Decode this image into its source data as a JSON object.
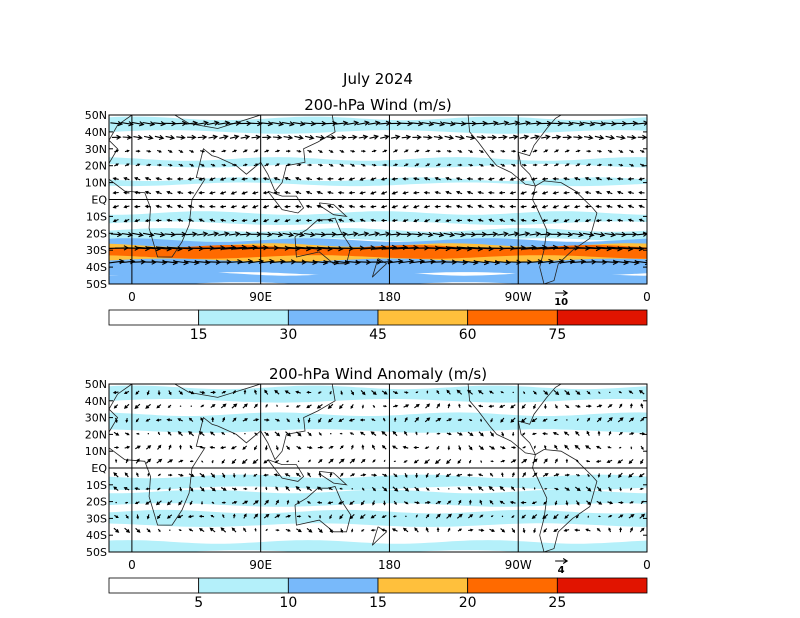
{
  "title": "July 2024",
  "chart_data": [
    {
      "type": "vector-map",
      "title": "200-hPa Wind (m/s)",
      "x_tick_labels": [
        "0",
        "90E",
        "180",
        "90W",
        "0"
      ],
      "y_tick_labels": [
        "50N",
        "40N",
        "30N",
        "20N",
        "10N",
        "EQ",
        "10S",
        "20S",
        "30S",
        "40S",
        "50S"
      ],
      "reference_vector_label": "10",
      "colorbar": {
        "boundary_labels": [
          "15",
          "30",
          "45",
          "60",
          "75"
        ],
        "colors": [
          "#ffffff",
          "#b4f0fa",
          "#78b9fa",
          "#ffc03c",
          "#ff6a00",
          "#e11400"
        ]
      },
      "bands": [
        {
          "lat_min": 40,
          "lat_max": 48,
          "level": 1
        },
        {
          "lat_min": 20,
          "lat_max": 24,
          "level": 1
        },
        {
          "lat_min": 9,
          "lat_max": 12,
          "level": 1
        },
        {
          "lat_min": -8,
          "lat_max": -14,
          "level": 1
        },
        {
          "lat_min": -18,
          "lat_max": -24,
          "level": 1
        },
        {
          "lat_min": -24,
          "lat_max": -44,
          "level": 2
        },
        {
          "lat_min": -27,
          "lat_max": -36,
          "level": 3
        },
        {
          "lat_min": -28,
          "lat_max": -34,
          "level": 4
        },
        {
          "lat_min": -44,
          "lat_max": -50,
          "level": 2
        }
      ]
    },
    {
      "type": "vector-map",
      "title": "200-hPa Wind Anomaly (m/s)",
      "x_tick_labels": [
        "0",
        "90E",
        "180",
        "90W",
        "0"
      ],
      "y_tick_labels": [
        "50N",
        "40N",
        "30N",
        "20N",
        "10N",
        "EQ",
        "10S",
        "20S",
        "30S",
        "40S",
        "50S"
      ],
      "reference_vector_label": "4",
      "colorbar": {
        "boundary_labels": [
          "5",
          "10",
          "15",
          "20",
          "25"
        ],
        "colors": [
          "#ffffff",
          "#b4f0fa",
          "#78b9fa",
          "#ffc03c",
          "#ff6a00",
          "#e11400"
        ]
      },
      "bands": [
        {
          "lat_min": 40,
          "lat_max": 48,
          "level": 1
        },
        {
          "lat_min": 22,
          "lat_max": 32,
          "level": 1
        },
        {
          "lat_min": -5,
          "lat_max": -12,
          "level": 1
        },
        {
          "lat_min": -14,
          "lat_max": -22,
          "level": 1
        },
        {
          "lat_min": -26,
          "lat_max": -34,
          "level": 1
        },
        {
          "lat_min": -44,
          "lat_max": -50,
          "level": 1
        }
      ]
    }
  ]
}
